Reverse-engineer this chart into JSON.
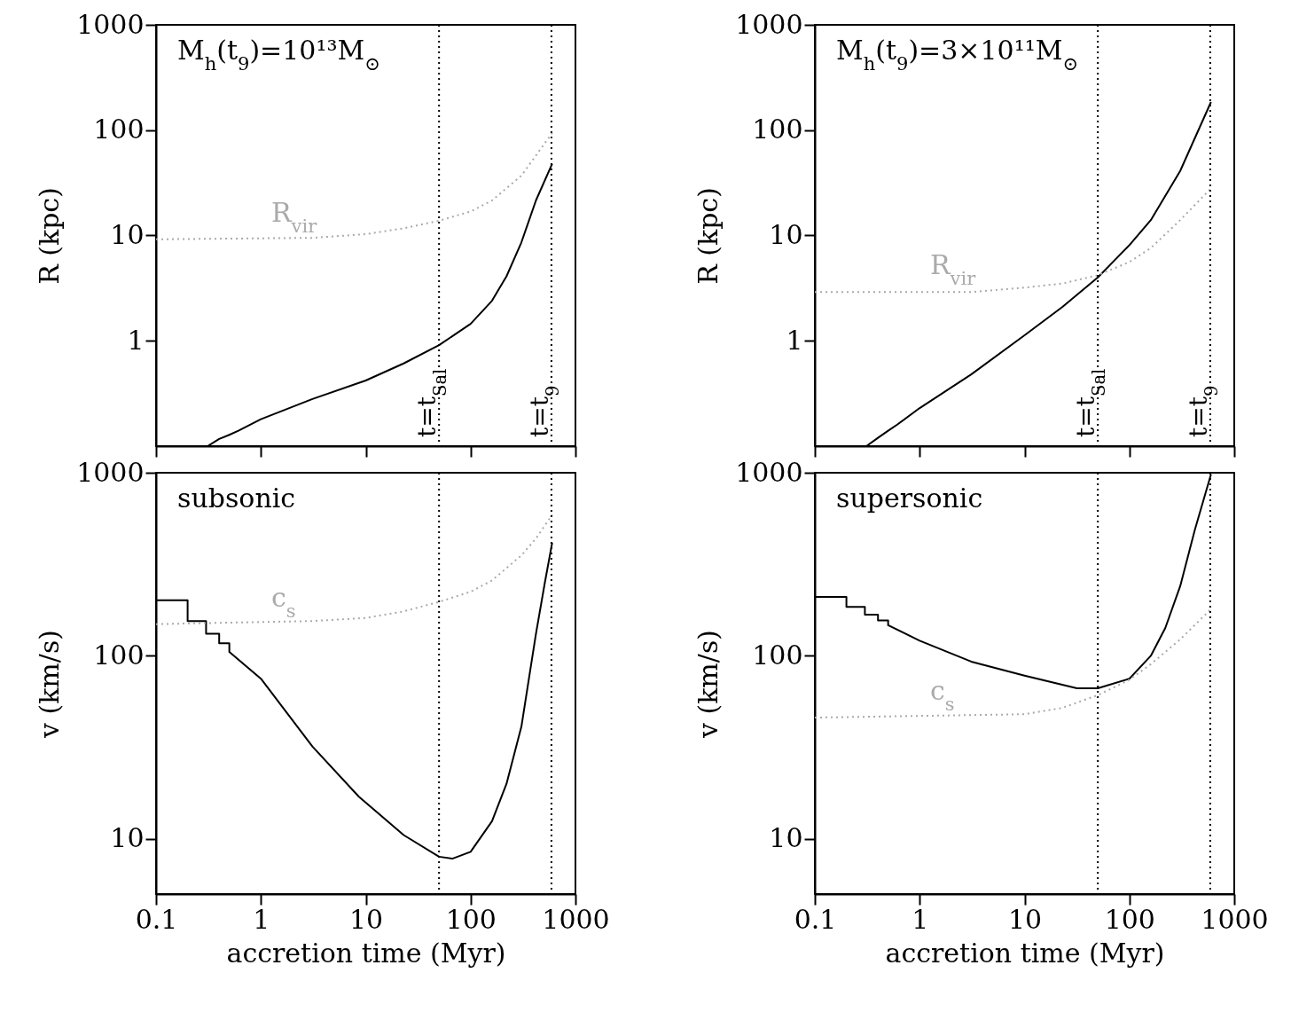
{
  "chart_data": [
    {
      "type": "line",
      "ylabel": "R (kpc)",
      "log": "xy",
      "xlim": [
        0.1,
        1000
      ],
      "xticks": [
        0.1,
        1,
        10,
        100,
        1000
      ],
      "ylim": [
        0.1,
        1000
      ],
      "yticks": [
        1,
        10,
        100,
        1000
      ],
      "tick_labels": "y",
      "annotations": [
        "M$_{h}$(t$_{9}$)=10¹³M$_{⊙}$"
      ],
      "ref_lines": [
        {
          "axis": "x",
          "value": 50,
          "label": "t=t$_{Sal}$",
          "color": "#000000",
          "line_style": "dotted"
        },
        {
          "axis": "x",
          "value": 590,
          "label": "t=t$_{9}$",
          "color": "#000000",
          "line_style": "dotted"
        }
      ],
      "series": [
        {
          "color": "#000000",
          "x": [
            0.31,
            0.4,
            0.5,
            0.61,
            1,
            3.1,
            10,
            23,
            50,
            100,
            160,
            220,
            305,
            420,
            600
          ],
          "values": [
            0.1,
            0.117,
            0.128,
            0.14,
            0.18,
            0.28,
            0.42,
            0.61,
            0.91,
            1.45,
            2.4,
            4.1,
            8.6,
            21.5,
            48
          ]
        },
        {
          "name": "R$_{vir}$",
          "color": "#aaaaaa",
          "line_style": "dotted",
          "x": [
            0.1,
            3.1,
            10,
            23,
            50,
            100,
            160,
            305,
            600
          ],
          "values": [
            9.2,
            9.5,
            10.3,
            11.7,
            13.8,
            16.9,
            21.5,
            37,
            94
          ]
        }
      ]
    },
    {
      "type": "line",
      "xlabel": "accretion time (Myr)",
      "ylabel": "v (km/s)",
      "log": "xy",
      "xlim": [
        0.1,
        1000
      ],
      "xticks": [
        0.1,
        1,
        10,
        100,
        1000
      ],
      "ylim": [
        5,
        1000
      ],
      "yticks": [
        10,
        100,
        1000
      ],
      "annotations": [
        "subsonic"
      ],
      "ref_lines": [
        {
          "axis": "x",
          "value": 50,
          "color": "#000000",
          "line_style": "dotted"
        },
        {
          "axis": "x",
          "value": 590,
          "color": "#000000",
          "line_style": "dotted"
        }
      ],
      "series": [
        {
          "color": "#000000",
          "x": [
            0.1,
            0.2,
            0.2,
            0.3,
            0.3,
            0.4,
            0.4,
            0.5,
            0.5,
            1,
            3.1,
            8.6,
            23,
            50,
            67,
            100,
            160,
            220,
            305,
            420,
            510,
            600
          ],
          "values": [
            201,
            201,
            155,
            155,
            132,
            132,
            117,
            117,
            105,
            75,
            32,
            17,
            10.5,
            8.0,
            7.8,
            8.5,
            12.5,
            20,
            41,
            132,
            250,
            415
          ]
        },
        {
          "name": "c$_{s}$",
          "color": "#aaaaaa",
          "line_style": "dotted",
          "x": [
            0.1,
            3.1,
            10,
            23,
            50,
            100,
            160,
            305,
            420,
            600
          ],
          "values": [
            149,
            155,
            161,
            175,
            197,
            224,
            258,
            354,
            437,
            590
          ]
        }
      ]
    },
    {
      "type": "line",
      "ylabel": "R (kpc)",
      "log": "xy",
      "xlim": [
        0.1,
        1000
      ],
      "xticks": [
        0.1,
        1,
        10,
        100,
        1000
      ],
      "ylim": [
        0.1,
        1000
      ],
      "yticks": [
        1,
        10,
        100,
        1000
      ],
      "tick_labels": "y",
      "annotations": [
        "M$_{h}$(t$_{9}$)=3×10¹¹M$_{⊙}$"
      ],
      "ref_lines": [
        {
          "axis": "x",
          "value": 50,
          "label": "t=t$_{Sal}$",
          "color": "#000000",
          "line_style": "dotted"
        },
        {
          "axis": "x",
          "value": 590,
          "label": "t=t$_{9}$",
          "color": "#000000",
          "line_style": "dotted"
        }
      ],
      "series": [
        {
          "color": "#000000",
          "x": [
            0.31,
            0.4,
            0.5,
            0.61,
            1,
            3.1,
            10,
            23,
            50,
            100,
            160,
            305,
            600
          ],
          "values": [
            0.1,
            0.12,
            0.14,
            0.16,
            0.23,
            0.48,
            1.13,
            2.1,
            4.0,
            8.1,
            14,
            41,
            185
          ]
        },
        {
          "name": "R$_{vir}$",
          "color": "#aaaaaa",
          "line_style": "dotted",
          "x": [
            0.1,
            3.1,
            10,
            23,
            50,
            100,
            160,
            305,
            600
          ],
          "values": [
            2.9,
            2.9,
            3.2,
            3.5,
            4.2,
            5.6,
            7.6,
            14,
            28
          ]
        }
      ]
    },
    {
      "type": "line",
      "xlabel": "accretion time (Myr)",
      "ylabel": "v (km/s)",
      "log": "xy",
      "xlim": [
        0.1,
        1000
      ],
      "xticks": [
        0.1,
        1,
        10,
        100,
        1000
      ],
      "ylim": [
        5,
        1000
      ],
      "yticks": [
        10,
        100,
        1000
      ],
      "annotations": [
        "supersonic"
      ],
      "ref_lines": [
        {
          "axis": "x",
          "value": 50,
          "color": "#000000",
          "line_style": "dotted"
        },
        {
          "axis": "x",
          "value": 590,
          "color": "#000000",
          "line_style": "dotted"
        }
      ],
      "series": [
        {
          "color": "#000000",
          "x": [
            0.1,
            0.2,
            0.2,
            0.3,
            0.3,
            0.4,
            0.4,
            0.5,
            0.5,
            1,
            3.1,
            10,
            31.6,
            50,
            100,
            160,
            220,
            305,
            420,
            600
          ],
          "values": [
            210,
            210,
            185,
            185,
            168,
            168,
            156,
            156,
            147,
            121,
            93,
            78,
            66.5,
            66.5,
            75,
            100,
            142,
            240,
            486,
            980
          ]
        },
        {
          "name": "c$_{s}$",
          "color": "#aaaaaa",
          "line_style": "dotted",
          "x": [
            0.1,
            10,
            23,
            50,
            100,
            160,
            305,
            600
          ],
          "values": [
            46,
            48,
            52,
            61,
            74,
            90,
            123,
            180
          ]
        }
      ]
    }
  ]
}
